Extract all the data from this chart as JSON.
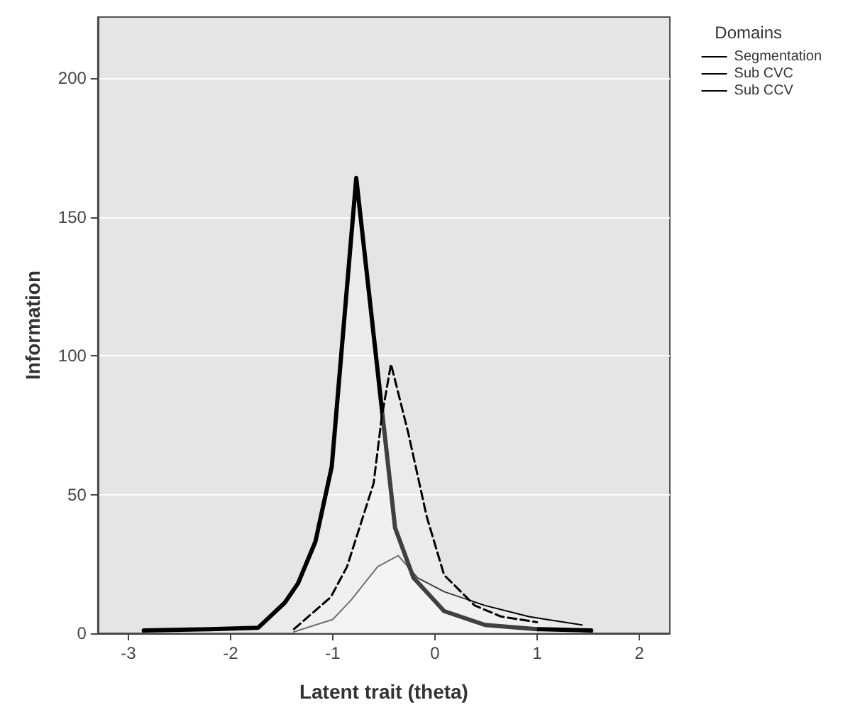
{
  "chart_data": {
    "type": "area",
    "xlabel": "Latent trait (theta)",
    "ylabel": "Information",
    "legend_title": "Domains",
    "legend": "top right",
    "grid": "y",
    "marker": "none",
    "xlim": [
      -3.3,
      2.3
    ],
    "xticks": [
      -3,
      -2,
      -1,
      0,
      1,
      2
    ],
    "ylim": [
      0,
      222
    ],
    "yticks": [
      0,
      50,
      100,
      150,
      200
    ],
    "series": [
      {
        "name": "Segmentation",
        "color": "#000000",
        "line_style": "solid",
        "x": [
          -1.38,
          -1.0,
          -0.82,
          -0.56,
          -0.36,
          -0.17,
          0.09,
          0.49,
          0.92,
          1.44
        ],
        "values": [
          0.5,
          5,
          12,
          24,
          28,
          20,
          15,
          10,
          6,
          3
        ]
      },
      {
        "name": "Sub CVC",
        "color": "#000000",
        "line_style": "solid",
        "x": [
          -2.85,
          -2.2,
          -1.73,
          -1.47,
          -1.34,
          -1.17,
          -1.01,
          -0.77,
          -0.52,
          -0.39,
          -0.21,
          0.09,
          0.49,
          1.0,
          1.53
        ],
        "values": [
          1,
          1.5,
          2,
          11,
          18,
          33,
          60,
          164,
          81,
          38,
          20,
          8,
          3,
          1.5,
          1
        ]
      },
      {
        "name": "Sub CCV",
        "color": "#000000",
        "line_style": "dashed",
        "x": [
          -1.38,
          -1.02,
          -0.86,
          -0.6,
          -0.52,
          -0.43,
          -0.26,
          -0.08,
          0.09,
          0.39,
          0.65,
          1.0
        ],
        "values": [
          1.5,
          13,
          24,
          54,
          78,
          97,
          72,
          42,
          21,
          10,
          6,
          4
        ]
      }
    ]
  }
}
